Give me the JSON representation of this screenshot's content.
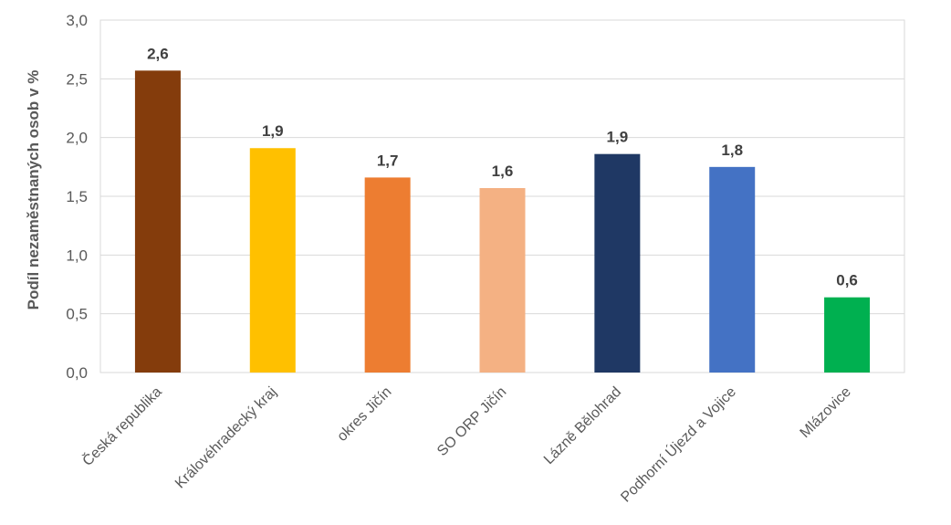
{
  "chart_data": {
    "type": "bar",
    "ylabel": "Podíl nezaměstnaných osob v %",
    "ylim": [
      0,
      3.0
    ],
    "ytick_step": 0.5,
    "yticks": [
      "0,0",
      "0,5",
      "1,0",
      "1,5",
      "2,0",
      "2,5",
      "3,0"
    ],
    "grid": true,
    "categories": [
      "Česká republika",
      "Královéhradecký kraj",
      "okres Jičín",
      "SO ORP Jičín",
      "Lázně Bělohrad",
      "Podhorní Újezd a Vojice",
      "Mlázovice"
    ],
    "values": [
      2.57,
      1.91,
      1.66,
      1.57,
      1.86,
      1.75,
      0.64
    ],
    "value_labels": [
      "2,6",
      "1,9",
      "1,7",
      "1,6",
      "1,9",
      "1,8",
      "0,6"
    ],
    "colors": [
      "#843C0C",
      "#FFC000",
      "#ED7D31",
      "#F4B183",
      "#1F3864",
      "#4472C4",
      "#00B050"
    ]
  }
}
